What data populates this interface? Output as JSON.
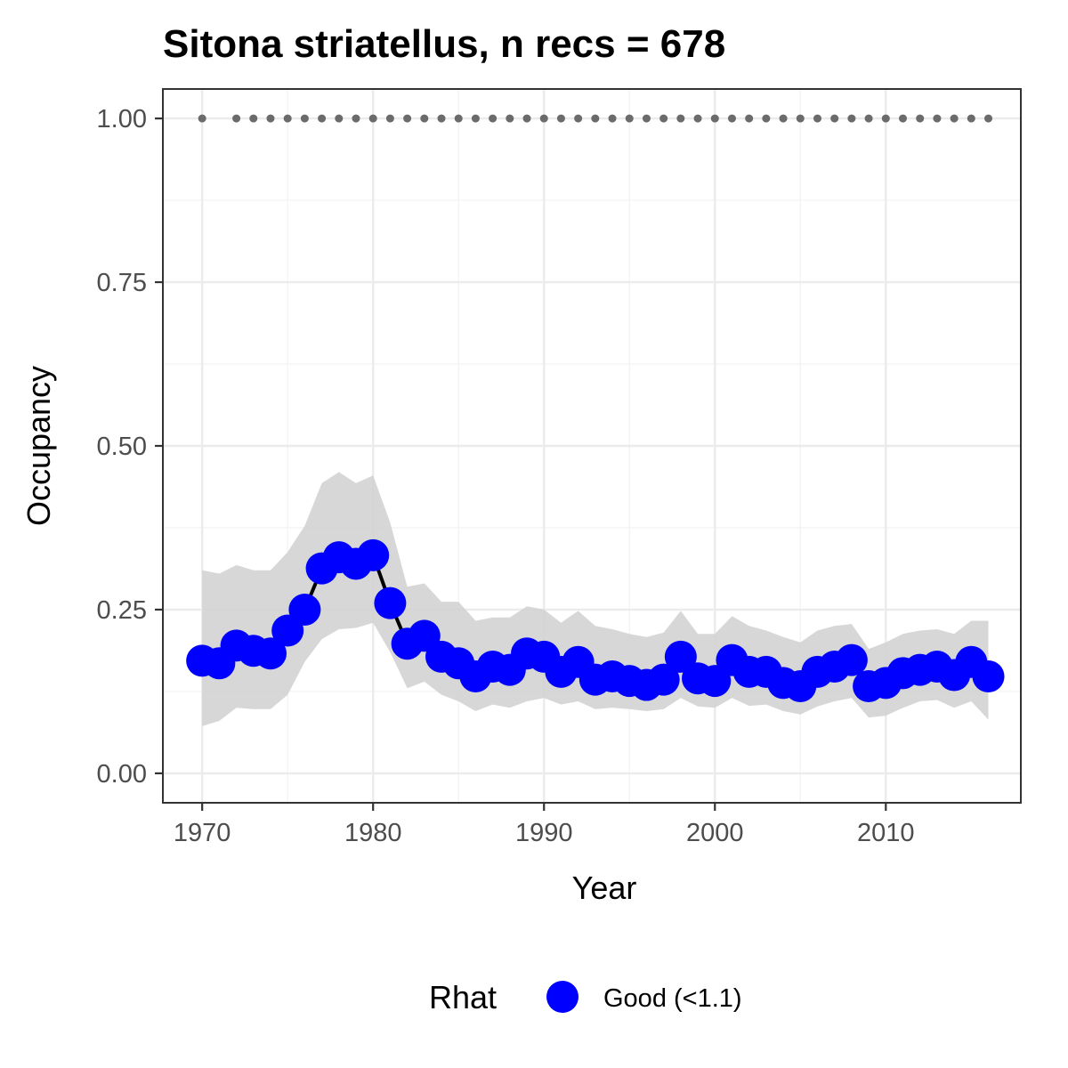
{
  "chart_data": {
    "type": "line",
    "title": "Sitona striatellus, n recs = 678",
    "xlabel": "Year",
    "ylabel": "Occupancy",
    "xlim": [
      1967.7,
      2017.9
    ],
    "ylim": [
      -0.045,
      1.045
    ],
    "x_ticks": [
      1970,
      1980,
      1990,
      2000,
      2010
    ],
    "y_ticks": [
      0.0,
      0.25,
      0.5,
      0.75,
      1.0
    ],
    "y_tick_labels": [
      "0.00",
      "0.25",
      "0.50",
      "0.75",
      "1.00"
    ],
    "grid": true,
    "legend": {
      "position": "bottom",
      "title": "Rhat",
      "entries": [
        {
          "label": "Good (<1.1)",
          "color": "#0000ff"
        }
      ]
    },
    "colors": {
      "points": "#0000ff",
      "line": "#000000",
      "ribbon": "#d3d3d3",
      "records": "#6b6b6b"
    },
    "series": [
      {
        "kind": "mean_with_ci",
        "x": [
          1970,
          1971,
          1972,
          1973,
          1974,
          1975,
          1976,
          1977,
          1978,
          1979,
          1980,
          1981,
          1982,
          1983,
          1984,
          1985,
          1986,
          1987,
          1988,
          1989,
          1990,
          1991,
          1992,
          1993,
          1994,
          1995,
          1996,
          1997,
          1998,
          1999,
          2000,
          2001,
          2002,
          2003,
          2004,
          2005,
          2006,
          2007,
          2008,
          2009,
          2010,
          2011,
          2012,
          2013,
          2014,
          2015,
          2016
        ],
        "y": [
          0.172,
          0.168,
          0.195,
          0.187,
          0.183,
          0.218,
          0.25,
          0.313,
          0.33,
          0.32,
          0.333,
          0.26,
          0.198,
          0.21,
          0.178,
          0.168,
          0.148,
          0.163,
          0.158,
          0.183,
          0.178,
          0.155,
          0.17,
          0.143,
          0.148,
          0.141,
          0.135,
          0.143,
          0.178,
          0.145,
          0.141,
          0.173,
          0.155,
          0.155,
          0.138,
          0.133,
          0.155,
          0.163,
          0.173,
          0.133,
          0.138,
          0.153,
          0.158,
          0.163,
          0.15,
          0.17,
          0.148
        ],
        "lower": [
          0.072,
          0.08,
          0.1,
          0.098,
          0.098,
          0.12,
          0.17,
          0.205,
          0.22,
          0.222,
          0.23,
          0.185,
          0.13,
          0.14,
          0.12,
          0.11,
          0.095,
          0.105,
          0.1,
          0.11,
          0.115,
          0.105,
          0.11,
          0.098,
          0.1,
          0.098,
          0.095,
          0.098,
          0.115,
          0.102,
          0.1,
          0.115,
          0.103,
          0.105,
          0.095,
          0.09,
          0.102,
          0.11,
          0.115,
          0.085,
          0.088,
          0.1,
          0.11,
          0.112,
          0.1,
          0.11,
          0.082
        ],
        "upper": [
          0.31,
          0.305,
          0.318,
          0.31,
          0.31,
          0.338,
          0.378,
          0.443,
          0.46,
          0.443,
          0.455,
          0.383,
          0.285,
          0.29,
          0.262,
          0.262,
          0.233,
          0.238,
          0.238,
          0.255,
          0.25,
          0.23,
          0.248,
          0.225,
          0.22,
          0.213,
          0.208,
          0.215,
          0.248,
          0.213,
          0.213,
          0.24,
          0.225,
          0.218,
          0.208,
          0.2,
          0.218,
          0.225,
          0.228,
          0.19,
          0.2,
          0.213,
          0.218,
          0.22,
          0.213,
          0.233,
          0.233
        ]
      },
      {
        "kind": "records",
        "x": [
          1970,
          1972,
          1973,
          1974,
          1975,
          1976,
          1977,
          1978,
          1979,
          1980,
          1981,
          1982,
          1983,
          1984,
          1985,
          1986,
          1987,
          1988,
          1989,
          1990,
          1991,
          1992,
          1993,
          1994,
          1995,
          1996,
          1997,
          1998,
          1999,
          2000,
          2001,
          2002,
          2003,
          2004,
          2005,
          2006,
          2007,
          2008,
          2009,
          2010,
          2011,
          2012,
          2013,
          2014,
          2015,
          2016
        ],
        "y": [
          1,
          1,
          1,
          1,
          1,
          1,
          1,
          1,
          1,
          1,
          1,
          1,
          1,
          1,
          1,
          1,
          1,
          1,
          1,
          1,
          1,
          1,
          1,
          1,
          1,
          1,
          1,
          1,
          1,
          1,
          1,
          1,
          1,
          1,
          1,
          1,
          1,
          1,
          1,
          1,
          1,
          1,
          1,
          1,
          1,
          1
        ]
      }
    ]
  }
}
